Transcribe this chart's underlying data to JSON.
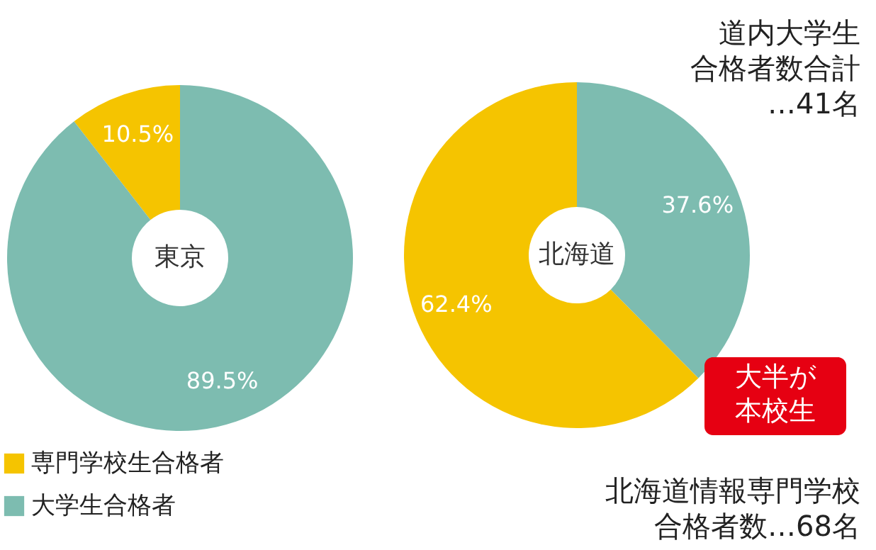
{
  "chart_data": [
    {
      "type": "donut",
      "title": "東京",
      "categories": [
        "専門学校生合格者",
        "大学生合格者"
      ],
      "values": [
        10.5,
        89.5
      ],
      "colors": [
        "#f5c400",
        "#7dbcb0"
      ],
      "value_labels": [
        "10.5%",
        "89.5%"
      ],
      "legend": "bottom left"
    },
    {
      "type": "donut",
      "title": "北海道",
      "categories": [
        null,
        null
      ],
      "values": [
        62.4,
        37.6
      ],
      "colors": [
        "#f5c400",
        "#7dbcb0"
      ],
      "value_labels": [
        "62.4%",
        "37.6%"
      ],
      "legend": false,
      "annotations": [
        "道内大学生合格者数合計…41名",
        "北海道情報専門学校合格者数…68名",
        "大半が本校生"
      ]
    }
  ]
}
